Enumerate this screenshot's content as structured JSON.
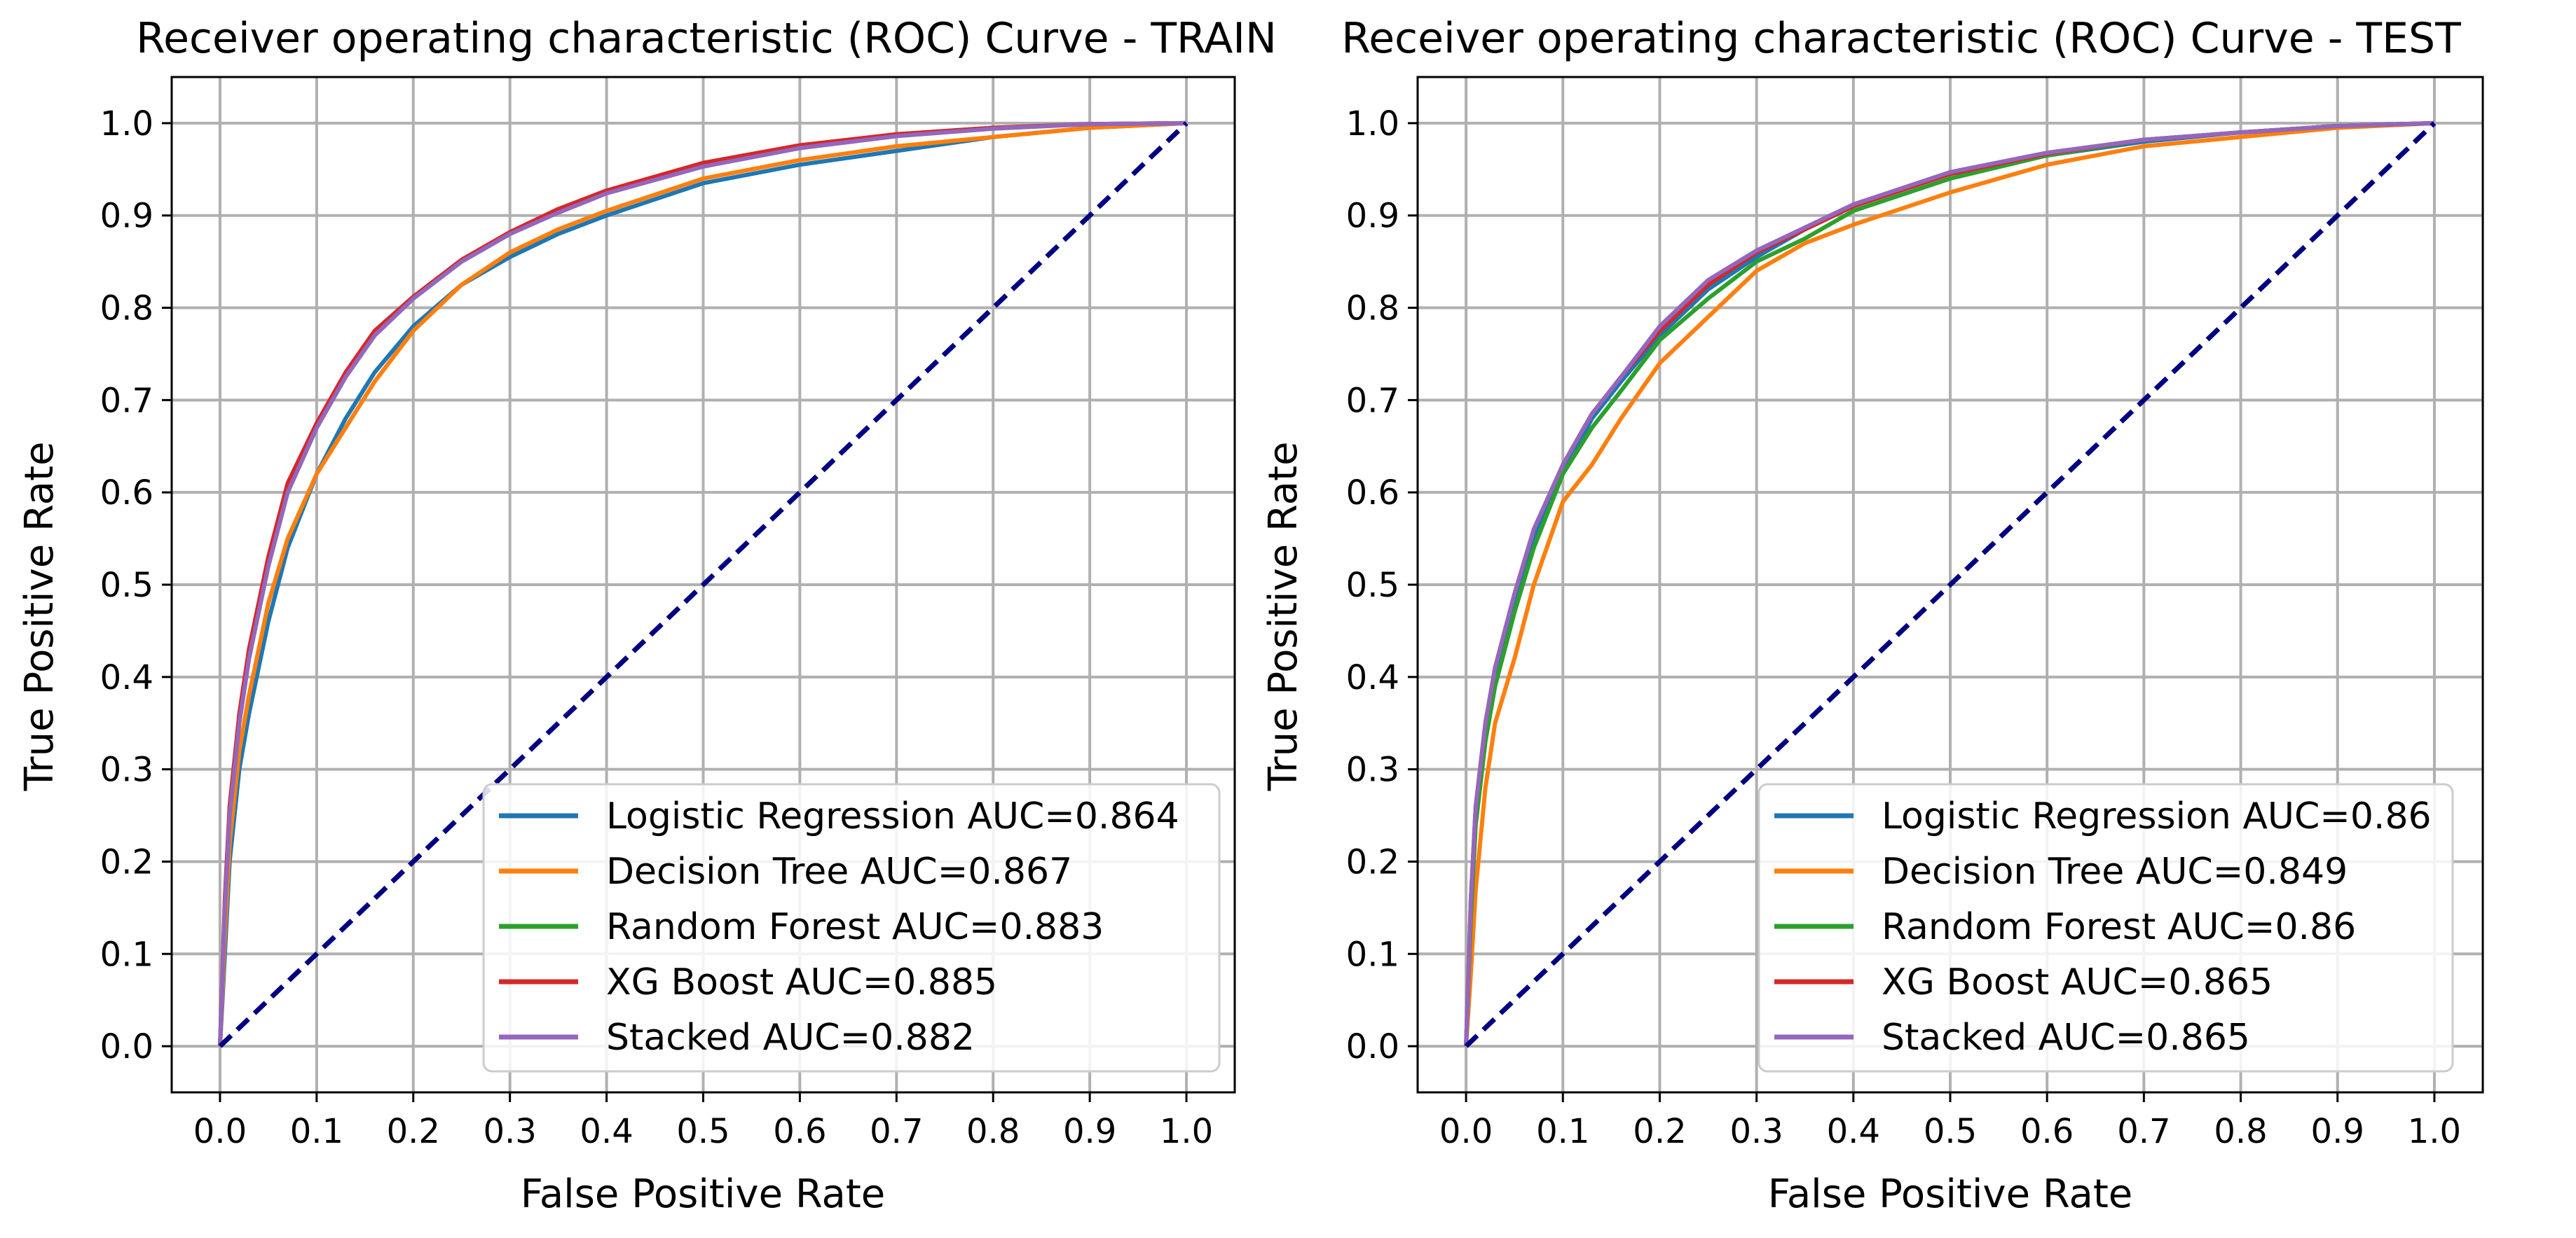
{
  "chart_data": [
    {
      "type": "line",
      "title": "Receiver operating characteristic (ROC) Curve - TRAIN",
      "xlabel": "False Positive Rate",
      "ylabel": "True Positive Rate",
      "xlim": [
        -0.05,
        1.05
      ],
      "ylim": [
        -0.05,
        1.05
      ],
      "xticks": [
        "0.0",
        "0.1",
        "0.2",
        "0.3",
        "0.4",
        "0.5",
        "0.6",
        "0.7",
        "0.8",
        "0.9",
        "1.0"
      ],
      "yticks": [
        "0.0",
        "0.1",
        "0.2",
        "0.3",
        "0.4",
        "0.5",
        "0.6",
        "0.7",
        "0.8",
        "0.9",
        "1.0"
      ],
      "grid": true,
      "legend_position": "lower-right",
      "diagonal": {
        "x": [
          0,
          1
        ],
        "y": [
          0,
          1
        ],
        "color": "#000080",
        "style": "dashed"
      },
      "series": [
        {
          "name": "Logistic Regression AUC=0.864",
          "color": "#1f77b4",
          "x": [
            0,
            0.005,
            0.01,
            0.02,
            0.03,
            0.05,
            0.07,
            0.1,
            0.13,
            0.16,
            0.2,
            0.25,
            0.3,
            0.35,
            0.4,
            0.5,
            0.6,
            0.7,
            0.8,
            0.9,
            1.0
          ],
          "y": [
            0,
            0.1,
            0.2,
            0.3,
            0.36,
            0.46,
            0.54,
            0.62,
            0.68,
            0.73,
            0.78,
            0.825,
            0.855,
            0.88,
            0.9,
            0.935,
            0.955,
            0.97,
            0.985,
            0.995,
            1.0
          ]
        },
        {
          "name": "Decision Tree AUC=0.867",
          "color": "#ff7f0e",
          "x": [
            0,
            0.005,
            0.01,
            0.02,
            0.03,
            0.05,
            0.07,
            0.1,
            0.13,
            0.16,
            0.2,
            0.25,
            0.3,
            0.35,
            0.4,
            0.5,
            0.6,
            0.7,
            0.8,
            0.9,
            1.0
          ],
          "y": [
            0,
            0.12,
            0.22,
            0.32,
            0.38,
            0.48,
            0.55,
            0.62,
            0.67,
            0.72,
            0.775,
            0.825,
            0.86,
            0.885,
            0.905,
            0.94,
            0.96,
            0.975,
            0.985,
            0.995,
            1.0
          ]
        },
        {
          "name": "Random Forest AUC=0.883",
          "color": "#2ca02c",
          "x": [
            0,
            0.005,
            0.01,
            0.02,
            0.03,
            0.05,
            0.07,
            0.1,
            0.13,
            0.16,
            0.2,
            0.25,
            0.3,
            0.35,
            0.4,
            0.5,
            0.6,
            0.7,
            0.8,
            0.9,
            1.0
          ],
          "y": [
            0,
            0.15,
            0.25,
            0.35,
            0.42,
            0.52,
            0.6,
            0.67,
            0.725,
            0.77,
            0.81,
            0.85,
            0.88,
            0.905,
            0.925,
            0.955,
            0.975,
            0.988,
            0.995,
            0.999,
            1.0
          ]
        },
        {
          "name": "XG Boost AUC=0.885",
          "color": "#d62728",
          "x": [
            0,
            0.005,
            0.01,
            0.02,
            0.03,
            0.05,
            0.07,
            0.1,
            0.13,
            0.16,
            0.2,
            0.25,
            0.3,
            0.35,
            0.4,
            0.5,
            0.6,
            0.7,
            0.8,
            0.9,
            1.0
          ],
          "y": [
            0,
            0.16,
            0.26,
            0.36,
            0.43,
            0.53,
            0.61,
            0.675,
            0.73,
            0.775,
            0.812,
            0.852,
            0.882,
            0.907,
            0.927,
            0.957,
            0.976,
            0.988,
            0.995,
            0.999,
            1.0
          ]
        },
        {
          "name": "Stacked AUC=0.882",
          "color": "#9467bd",
          "x": [
            0,
            0.005,
            0.01,
            0.02,
            0.03,
            0.05,
            0.07,
            0.1,
            0.13,
            0.16,
            0.2,
            0.25,
            0.3,
            0.35,
            0.4,
            0.5,
            0.6,
            0.7,
            0.8,
            0.9,
            1.0
          ],
          "y": [
            0,
            0.15,
            0.25,
            0.35,
            0.42,
            0.52,
            0.6,
            0.67,
            0.725,
            0.77,
            0.81,
            0.85,
            0.88,
            0.903,
            0.924,
            0.953,
            0.973,
            0.986,
            0.994,
            0.999,
            1.0
          ]
        }
      ]
    },
    {
      "type": "line",
      "title": "Receiver operating characteristic (ROC) Curve - TEST",
      "xlabel": "False Positive Rate",
      "ylabel": "True Positive Rate",
      "xlim": [
        -0.05,
        1.05
      ],
      "ylim": [
        -0.05,
        1.05
      ],
      "xticks": [
        "0.0",
        "0.1",
        "0.2",
        "0.3",
        "0.4",
        "0.5",
        "0.6",
        "0.7",
        "0.8",
        "0.9",
        "1.0"
      ],
      "yticks": [
        "0.0",
        "0.1",
        "0.2",
        "0.3",
        "0.4",
        "0.5",
        "0.6",
        "0.7",
        "0.8",
        "0.9",
        "1.0"
      ],
      "grid": true,
      "legend_position": "lower-right",
      "diagonal": {
        "x": [
          0,
          1
        ],
        "y": [
          0,
          1
        ],
        "color": "#000080",
        "style": "dashed"
      },
      "series": [
        {
          "name": "Logistic Regression AUC=0.86",
          "color": "#1f77b4",
          "x": [
            0,
            0.005,
            0.01,
            0.02,
            0.03,
            0.05,
            0.07,
            0.1,
            0.13,
            0.16,
            0.2,
            0.25,
            0.3,
            0.35,
            0.4,
            0.5,
            0.6,
            0.7,
            0.8,
            0.9,
            1.0
          ],
          "y": [
            0,
            0.15,
            0.25,
            0.34,
            0.4,
            0.48,
            0.55,
            0.62,
            0.68,
            0.72,
            0.77,
            0.82,
            0.855,
            0.885,
            0.91,
            0.945,
            0.965,
            0.98,
            0.99,
            0.997,
            1.0
          ]
        },
        {
          "name": "Decision Tree AUC=0.849",
          "color": "#ff7f0e",
          "x": [
            0,
            0.005,
            0.01,
            0.02,
            0.03,
            0.05,
            0.07,
            0.1,
            0.13,
            0.16,
            0.2,
            0.25,
            0.3,
            0.35,
            0.4,
            0.5,
            0.6,
            0.7,
            0.8,
            0.9,
            1.0
          ],
          "y": [
            0,
            0.08,
            0.17,
            0.28,
            0.35,
            0.42,
            0.5,
            0.59,
            0.63,
            0.68,
            0.74,
            0.79,
            0.84,
            0.87,
            0.89,
            0.925,
            0.955,
            0.975,
            0.985,
            0.995,
            1.0
          ]
        },
        {
          "name": "Random Forest AUC=0.86",
          "color": "#2ca02c",
          "x": [
            0,
            0.005,
            0.01,
            0.02,
            0.03,
            0.05,
            0.07,
            0.1,
            0.13,
            0.16,
            0.2,
            0.25,
            0.3,
            0.35,
            0.4,
            0.5,
            0.6,
            0.7,
            0.8,
            0.9,
            1.0
          ],
          "y": [
            0,
            0.14,
            0.24,
            0.33,
            0.39,
            0.47,
            0.54,
            0.62,
            0.67,
            0.71,
            0.765,
            0.81,
            0.85,
            0.875,
            0.905,
            0.94,
            0.965,
            0.982,
            0.99,
            0.997,
            1.0
          ]
        },
        {
          "name": "XG Boost AUC=0.865",
          "color": "#d62728",
          "x": [
            0,
            0.005,
            0.01,
            0.02,
            0.03,
            0.05,
            0.07,
            0.1,
            0.13,
            0.16,
            0.2,
            0.25,
            0.3,
            0.35,
            0.4,
            0.5,
            0.6,
            0.7,
            0.8,
            0.9,
            1.0
          ],
          "y": [
            0,
            0.16,
            0.26,
            0.35,
            0.41,
            0.49,
            0.56,
            0.63,
            0.685,
            0.725,
            0.775,
            0.825,
            0.86,
            0.885,
            0.91,
            0.945,
            0.967,
            0.982,
            0.99,
            0.997,
            1.0
          ]
        },
        {
          "name": "Stacked AUC=0.865",
          "color": "#9467bd",
          "x": [
            0,
            0.005,
            0.01,
            0.02,
            0.03,
            0.05,
            0.07,
            0.1,
            0.13,
            0.16,
            0.2,
            0.25,
            0.3,
            0.35,
            0.4,
            0.5,
            0.6,
            0.7,
            0.8,
            0.9,
            1.0
          ],
          "y": [
            0,
            0.16,
            0.26,
            0.35,
            0.41,
            0.49,
            0.56,
            0.63,
            0.685,
            0.725,
            0.78,
            0.83,
            0.862,
            0.887,
            0.912,
            0.947,
            0.968,
            0.982,
            0.99,
            0.997,
            1.0
          ]
        }
      ]
    }
  ]
}
